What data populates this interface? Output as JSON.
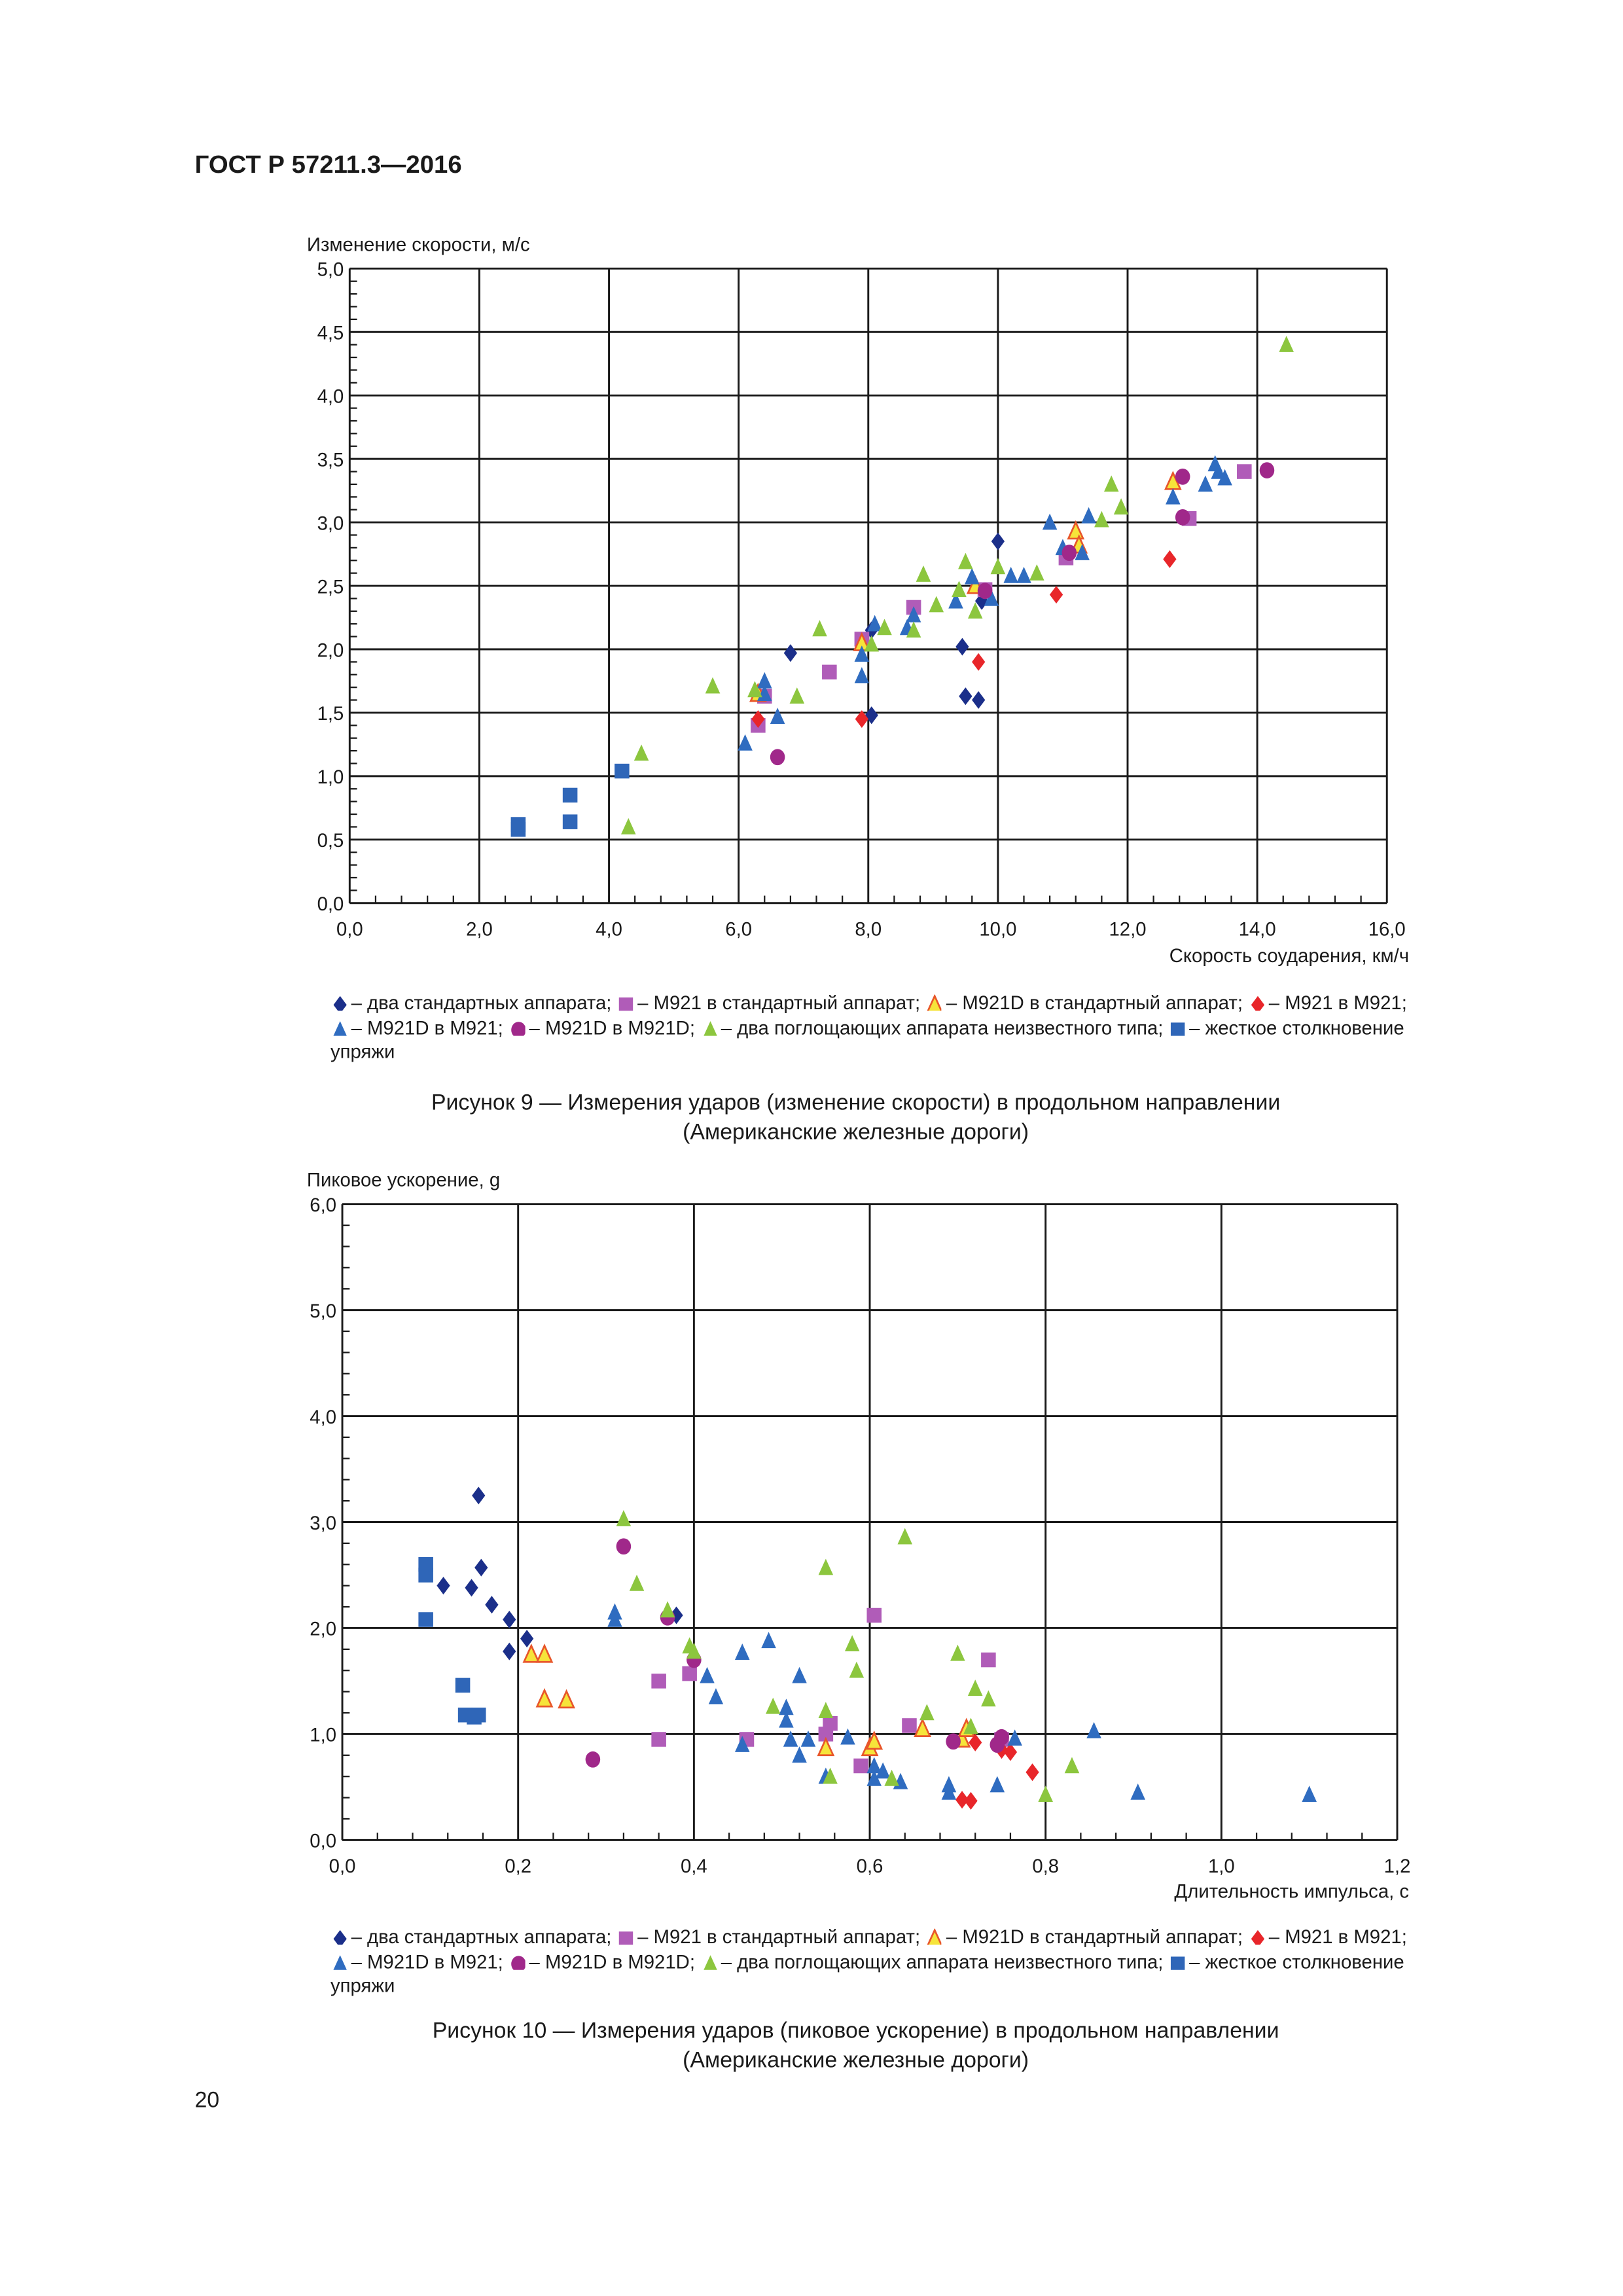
{
  "header": {
    "title": "ГОСТ Р 57211.3—2016"
  },
  "page_number": "20",
  "figure9": {
    "caption_line1": "Рисунок 9 — Измерения ударов (изменение скорости) в продольном направлении",
    "caption_line2": "(Американские железные дороги)"
  },
  "figure10": {
    "caption_line1": "Рисунок 10 — Измерения ударов (пиковое ускорение) в продольном направлении",
    "caption_line2": "(Американские железные дороги)"
  },
  "chart_data": [
    {
      "type": "scatter",
      "ylabel": "Изменение скорости, м/с",
      "xlabel": "Скорость соударения, км/ч",
      "xlim": [
        0,
        16
      ],
      "ylim": [
        0,
        5
      ],
      "x_ticks": [
        "0,0",
        "2,0",
        "4,0",
        "6,0",
        "8,0",
        "10,0",
        "12,0",
        "14,0",
        "16,0"
      ],
      "y_ticks": [
        "0,0",
        "0,5",
        "1,0",
        "1,5",
        "2,0",
        "2,5",
        "3,0",
        "3,5",
        "4,0",
        "4,5",
        "5,0"
      ],
      "grid": true,
      "legend_placement": "bottom",
      "series": [
        {
          "name": "– два стандартных аппарата;",
          "marker": "diamond",
          "color": "#1b2f8a",
          "points": [
            [
              6.8,
              1.97
            ],
            [
              8.05,
              1.48
            ],
            [
              9.45,
              2.02
            ],
            [
              9.5,
              1.63
            ],
            [
              9.7,
              1.6
            ],
            [
              9.75,
              2.38
            ],
            [
              10.0,
              2.85
            ],
            [
              8.05,
              2.15
            ]
          ]
        },
        {
          "name": "– M921 в стандартный аппарат;",
          "marker": "square",
          "color": "#b05cb8",
          "points": [
            [
              6.3,
              1.4
            ],
            [
              6.4,
              1.63
            ],
            [
              7.4,
              1.82
            ],
            [
              7.9,
              2.08
            ],
            [
              8.7,
              2.33
            ],
            [
              9.8,
              2.47
            ],
            [
              11.05,
              2.72
            ],
            [
              12.95,
              3.03
            ],
            [
              13.8,
              3.4
            ]
          ]
        },
        {
          "name": "– M921D в стандартный аппарат;",
          "marker": "triangle-outlined",
          "color": "#f6e43a",
          "points": [
            [
              6.3,
              1.65
            ],
            [
              7.9,
              2.05
            ],
            [
              9.65,
              2.5
            ],
            [
              11.2,
              2.93
            ],
            [
              11.25,
              2.82
            ],
            [
              12.7,
              3.32
            ]
          ]
        },
        {
          "name": "– M921 в M921;",
          "marker": "diamond",
          "color": "#e8262a",
          "points": [
            [
              6.3,
              1.45
            ],
            [
              7.9,
              1.45
            ],
            [
              9.7,
              1.9
            ],
            [
              10.9,
              2.43
            ],
            [
              12.65,
              2.71
            ]
          ]
        },
        {
          "name": "– M921D в M921;",
          "marker": "triangle",
          "color": "#2f6cc0",
          "points": [
            [
              6.1,
              1.26
            ],
            [
              6.4,
              1.75
            ],
            [
              6.4,
              1.65
            ],
            [
              6.6,
              1.47
            ],
            [
              7.9,
              1.79
            ],
            [
              7.9,
              1.96
            ],
            [
              8.1,
              2.2
            ],
            [
              8.7,
              2.27
            ],
            [
              8.6,
              2.17
            ],
            [
              9.35,
              2.38
            ],
            [
              9.6,
              2.57
            ],
            [
              9.9,
              2.4
            ],
            [
              10.2,
              2.58
            ],
            [
              10.4,
              2.58
            ],
            [
              10.8,
              3.0
            ],
            [
              11.0,
              2.8
            ],
            [
              11.3,
              2.76
            ],
            [
              11.4,
              3.05
            ],
            [
              12.7,
              3.2
            ],
            [
              13.2,
              3.3
            ],
            [
              13.35,
              3.46
            ],
            [
              13.4,
              3.4
            ],
            [
              13.5,
              3.35
            ]
          ]
        },
        {
          "name": "– M921D в M921D;",
          "marker": "circle",
          "color": "#a0288a",
          "points": [
            [
              6.6,
              1.15
            ],
            [
              9.8,
              2.46
            ],
            [
              11.1,
              2.76
            ],
            [
              12.85,
              3.04
            ],
            [
              12.85,
              3.36
            ],
            [
              14.15,
              3.41
            ]
          ]
        },
        {
          "name": "– два поглощающих аппарата неизвестного типа;",
          "marker": "triangle",
          "color": "#8cc63e",
          "points": [
            [
              4.3,
              0.6
            ],
            [
              4.5,
              1.18
            ],
            [
              5.6,
              1.71
            ],
            [
              6.25,
              1.68
            ],
            [
              6.9,
              1.63
            ],
            [
              7.25,
              2.16
            ],
            [
              8.05,
              2.04
            ],
            [
              8.25,
              2.17
            ],
            [
              8.7,
              2.15
            ],
            [
              8.85,
              2.59
            ],
            [
              9.05,
              2.35
            ],
            [
              9.4,
              2.47
            ],
            [
              9.5,
              2.69
            ],
            [
              9.65,
              2.3
            ],
            [
              10.0,
              2.65
            ],
            [
              10.6,
              2.6
            ],
            [
              11.6,
              3.02
            ],
            [
              11.75,
              3.3
            ],
            [
              11.9,
              3.12
            ],
            [
              14.45,
              4.4
            ]
          ]
        },
        {
          "name": "– жесткое столкновение упряжи",
          "marker": "square",
          "color": "#2f66b8",
          "points": [
            [
              2.6,
              0.58
            ],
            [
              2.6,
              0.62
            ],
            [
              3.4,
              0.85
            ],
            [
              3.4,
              0.64
            ],
            [
              4.2,
              1.04
            ]
          ]
        }
      ]
    },
    {
      "type": "scatter",
      "ylabel": "Пиковое ускорение, g",
      "xlabel": "Длительность импульса, с",
      "xlim": [
        0,
        1.2
      ],
      "ylim": [
        0,
        6
      ],
      "x_ticks": [
        "0,0",
        "0,2",
        "0,4",
        "0,6",
        "0,8",
        "1,0",
        "1,2"
      ],
      "y_ticks": [
        "0,0",
        "1,0",
        "2,0",
        "3,0",
        "4,0",
        "5,0",
        "6,0"
      ],
      "grid": true,
      "legend_placement": "bottom",
      "series": [
        {
          "name": "– два стандартных аппарата;",
          "marker": "diamond",
          "color": "#1b2f8a",
          "points": [
            [
              0.155,
              3.25
            ],
            [
              0.115,
              2.4
            ],
            [
              0.147,
              2.38
            ],
            [
              0.158,
              2.57
            ],
            [
              0.17,
              2.22
            ],
            [
              0.19,
              2.08
            ],
            [
              0.19,
              1.78
            ],
            [
              0.21,
              1.9
            ],
            [
              0.38,
              2.12
            ]
          ]
        },
        {
          "name": "– M921 в стандартный аппарат;",
          "marker": "square",
          "color": "#b05cb8",
          "points": [
            [
              0.36,
              1.5
            ],
            [
              0.36,
              0.95
            ],
            [
              0.395,
              1.57
            ],
            [
              0.46,
              0.95
            ],
            [
              0.55,
              1.0
            ],
            [
              0.555,
              1.1
            ],
            [
              0.59,
              0.7
            ],
            [
              0.605,
              2.12
            ],
            [
              0.645,
              1.08
            ],
            [
              0.735,
              1.7
            ],
            [
              0.75,
              0.95
            ]
          ]
        },
        {
          "name": "– M921D в стандартный аппарат;",
          "marker": "triangle-outlined",
          "color": "#f6e43a",
          "points": [
            [
              0.215,
              1.75
            ],
            [
              0.23,
              1.75
            ],
            [
              0.23,
              1.33
            ],
            [
              0.255,
              1.32
            ],
            [
              0.55,
              0.87
            ],
            [
              0.6,
              0.87
            ],
            [
              0.605,
              0.93
            ],
            [
              0.66,
              1.05
            ],
            [
              0.705,
              0.95
            ],
            [
              0.71,
              1.05
            ]
          ]
        },
        {
          "name": "– M921 в M921;",
          "marker": "diamond",
          "color": "#e8262a",
          "points": [
            [
              0.705,
              0.38
            ],
            [
              0.715,
              0.37
            ],
            [
              0.72,
              0.92
            ],
            [
              0.75,
              0.85
            ],
            [
              0.76,
              0.83
            ],
            [
              0.785,
              0.64
            ]
          ]
        },
        {
          "name": "– M921D в M921;",
          "marker": "triangle",
          "color": "#2f6cc0",
          "points": [
            [
              0.31,
              2.15
            ],
            [
              0.31,
              2.08
            ],
            [
              0.455,
              1.77
            ],
            [
              0.485,
              1.88
            ],
            [
              0.415,
              1.55
            ],
            [
              0.425,
              1.35
            ],
            [
              0.455,
              0.9
            ],
            [
              0.505,
              1.25
            ],
            [
              0.505,
              1.13
            ],
            [
              0.51,
              0.95
            ],
            [
              0.52,
              1.55
            ],
            [
              0.52,
              0.8
            ],
            [
              0.53,
              0.95
            ],
            [
              0.55,
              0.6
            ],
            [
              0.575,
              0.97
            ],
            [
              0.605,
              0.7
            ],
            [
              0.605,
              0.58
            ],
            [
              0.615,
              0.65
            ],
            [
              0.635,
              0.55
            ],
            [
              0.69,
              0.52
            ],
            [
              0.69,
              0.45
            ],
            [
              0.745,
              0.52
            ],
            [
              0.765,
              0.96
            ],
            [
              0.855,
              1.03
            ],
            [
              0.905,
              0.45
            ],
            [
              1.1,
              0.43
            ]
          ]
        },
        {
          "name": "– M921D в M921D;",
          "marker": "circle",
          "color": "#a0288a",
          "points": [
            [
              0.285,
              0.76
            ],
            [
              0.32,
              2.77
            ],
            [
              0.37,
              2.1
            ],
            [
              0.4,
              1.7
            ],
            [
              0.695,
              0.93
            ],
            [
              0.745,
              0.9
            ],
            [
              0.75,
              0.97
            ]
          ]
        },
        {
          "name": "– два поглощающих аппарата неизвестного типа;",
          "marker": "triangle",
          "color": "#8cc63e",
          "points": [
            [
              0.32,
              3.03
            ],
            [
              0.335,
              2.42
            ],
            [
              0.37,
              2.17
            ],
            [
              0.395,
              1.83
            ],
            [
              0.4,
              1.78
            ],
            [
              0.49,
              1.26
            ],
            [
              0.55,
              1.22
            ],
            [
              0.55,
              2.57
            ],
            [
              0.555,
              0.6
            ],
            [
              0.58,
              1.85
            ],
            [
              0.585,
              1.6
            ],
            [
              0.625,
              0.58
            ],
            [
              0.64,
              2.86
            ],
            [
              0.665,
              1.2
            ],
            [
              0.7,
              1.76
            ],
            [
              0.72,
              1.43
            ],
            [
              0.735,
              1.33
            ],
            [
              0.715,
              1.07
            ],
            [
              0.8,
              0.43
            ],
            [
              0.83,
              0.7
            ]
          ]
        },
        {
          "name": "– жесткое столкновение упряжи",
          "marker": "square",
          "color": "#2f66b8",
          "points": [
            [
              0.095,
              2.6
            ],
            [
              0.095,
              2.5
            ],
            [
              0.095,
              2.08
            ],
            [
              0.137,
              1.46
            ],
            [
              0.14,
              1.18
            ],
            [
              0.15,
              1.16
            ],
            [
              0.155,
              1.18
            ]
          ]
        }
      ]
    }
  ]
}
